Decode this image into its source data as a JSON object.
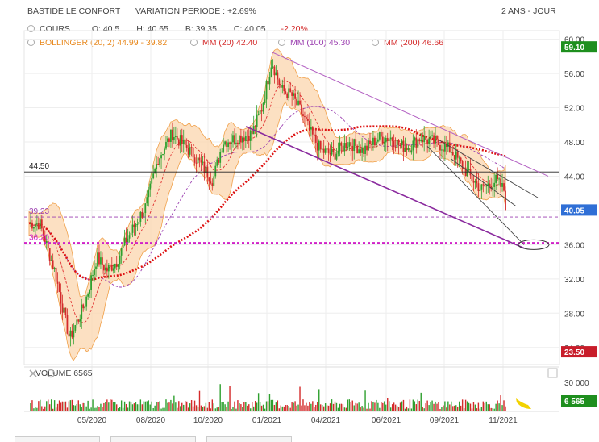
{
  "header": {
    "title": "BASTIDE LE CONFORT",
    "variation": "VARIATION PERIODE : +2.69%",
    "period": "2 ANS - JOUR"
  },
  "legend": {
    "cours": {
      "label": "COURS",
      "o": "O: 40.5",
      "h": "H: 40.65",
      "b": "B: 39.35",
      "c": "C: 40.05",
      "chg": "-2.20%"
    },
    "bollinger": "BOLLINGER (20, 2) 44.99 - 39.82",
    "mm20": "MM (20) 42.40",
    "mm100": "MM (100) 45.30",
    "mm200": "MM (200) 46.66"
  },
  "volume": {
    "label": "VOLUME 6565",
    "axis_top": "30 000",
    "last_badge": "6 565"
  },
  "colors": {
    "up": "#2ea02e",
    "down": "#d42a2a",
    "bollinger": "#f0a04a",
    "mm20": "#e03030",
    "mm100": "#9b3fb0",
    "mm200": "#dd1111",
    "pink_level": "#d020c8",
    "badge_green": "#1e8f1e",
    "badge_blue": "#2f6fd6",
    "badge_red": "#c81d2a"
  },
  "chart_data": {
    "type": "candlestick",
    "x_ticks": [
      "05/2020",
      "08/2020",
      "10/2020",
      "01/2021",
      "04/2021",
      "06/2021",
      "09/2021",
      "11/2021"
    ],
    "y_ticks": [
      "60.00",
      "56.00",
      "52.00",
      "48.00",
      "44.00",
      "40.00",
      "36.00",
      "32.00",
      "28.00",
      "24.00"
    ],
    "ylim": [
      22,
      61
    ],
    "levels": {
      "line_4450": "44.50",
      "line_3923": "39.23",
      "line_3620": "36.20"
    },
    "badges": {
      "high": "59.10",
      "last": "40.05",
      "low": "23.50"
    },
    "price_path": [
      {
        "x": "03/2020",
        "y": 38.5
      },
      {
        "x": "03/2020",
        "y": 33.0
      },
      {
        "x": "04/2020",
        "y": 25.0
      },
      {
        "x": "04/2020",
        "y": 29.0
      },
      {
        "x": "05/2020",
        "y": 34.5
      },
      {
        "x": "05/2020",
        "y": 33.0
      },
      {
        "x": "06/2020",
        "y": 34.0
      },
      {
        "x": "06/2020",
        "y": 36.5
      },
      {
        "x": "07/2020",
        "y": 38.5
      },
      {
        "x": "07/2020",
        "y": 40.5
      },
      {
        "x": "08/2020",
        "y": 46.0
      },
      {
        "x": "08/2020",
        "y": 49.0
      },
      {
        "x": "09/2020",
        "y": 46.5
      },
      {
        "x": "10/2020",
        "y": 43.5
      },
      {
        "x": "10/2020",
        "y": 48.0
      },
      {
        "x": "11/2020",
        "y": 48.5
      },
      {
        "x": "12/2020",
        "y": 49.0
      },
      {
        "x": "12/2020",
        "y": 52.0
      },
      {
        "x": "01/2021",
        "y": 57.5
      },
      {
        "x": "01/2021",
        "y": 54.0
      },
      {
        "x": "02/2021",
        "y": 53.5
      },
      {
        "x": "02/2021",
        "y": 51.5
      },
      {
        "x": "03/2021",
        "y": 49.0
      },
      {
        "x": "03/2021",
        "y": 47.0
      },
      {
        "x": "04/2021",
        "y": 46.5
      },
      {
        "x": "04/2021",
        "y": 48.0
      },
      {
        "x": "05/2021",
        "y": 47.0
      },
      {
        "x": "05/2021",
        "y": 48.5
      },
      {
        "x": "06/2021",
        "y": 48.5
      },
      {
        "x": "06/2021",
        "y": 47.5
      },
      {
        "x": "07/2021",
        "y": 47.5
      },
      {
        "x": "07/2021",
        "y": 48.5
      },
      {
        "x": "08/2021",
        "y": 48.0
      },
      {
        "x": "09/2021",
        "y": 47.0
      },
      {
        "x": "09/2021",
        "y": 44.5
      },
      {
        "x": "10/2021",
        "y": 42.5
      },
      {
        "x": "10/2021",
        "y": 43.5
      },
      {
        "x": "11/2021",
        "y": 41.5
      },
      {
        "x": "11/2021",
        "y": 40.05
      }
    ]
  }
}
